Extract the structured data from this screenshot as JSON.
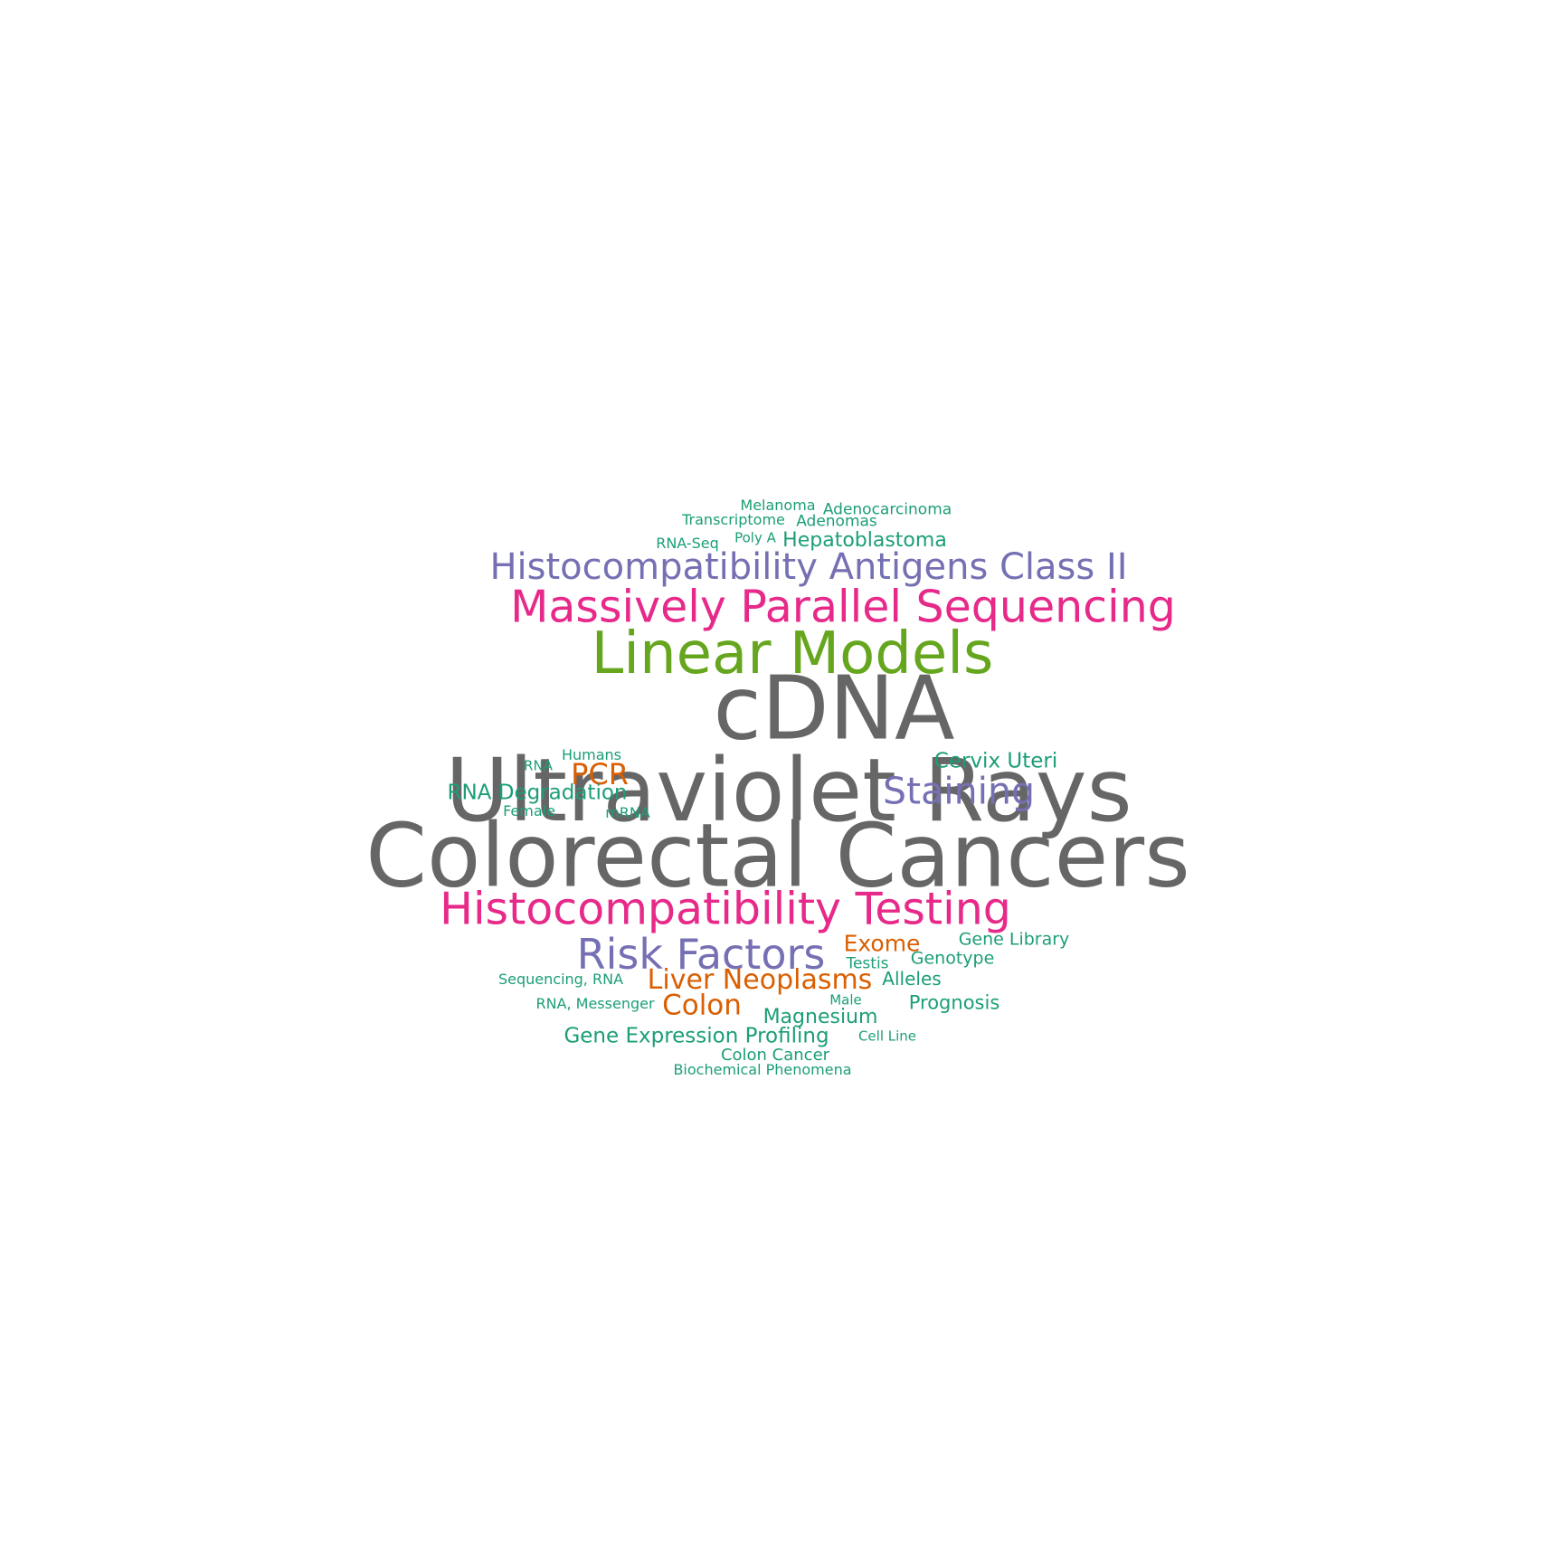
{
  "colors": {
    "gray": "#666666",
    "green": "#1b9e77",
    "lime": "#66a61e",
    "purple": "#7570b3",
    "pink": "#e7298a",
    "orange": "#d95f02"
  },
  "words": [
    {
      "text": "cDNA",
      "color": "gray"
    },
    {
      "text": "Colorectal Cancers",
      "color": "gray"
    },
    {
      "text": "Ultraviolet Rays",
      "color": "gray"
    },
    {
      "text": "Linear Models",
      "color": "lime"
    },
    {
      "text": "Massively Parallel Sequencing",
      "color": "pink"
    },
    {
      "text": "Histocompatibility Testing",
      "color": "pink"
    },
    {
      "text": "Histocompatibility Antigens Class II",
      "color": "purple"
    },
    {
      "text": "Risk Factors",
      "color": "purple"
    },
    {
      "text": "Staining",
      "color": "purple"
    },
    {
      "text": "PCR",
      "color": "orange"
    },
    {
      "text": "Colon",
      "color": "orange"
    },
    {
      "text": "Liver Neoplasms",
      "color": "orange"
    },
    {
      "text": "Exome",
      "color": "orange"
    },
    {
      "text": "RNA Degradation",
      "color": "green"
    },
    {
      "text": "Gene Expression Profiling",
      "color": "green"
    },
    {
      "text": "Cervix Uteri",
      "color": "green"
    },
    {
      "text": "Magnesium",
      "color": "green"
    },
    {
      "text": "Hepatoblastoma",
      "color": "green"
    },
    {
      "text": "Prognosis",
      "color": "green"
    },
    {
      "text": "Alleles",
      "color": "green"
    },
    {
      "text": "Gene Library",
      "color": "green"
    },
    {
      "text": "Genotype",
      "color": "green"
    },
    {
      "text": "Colon Cancer",
      "color": "green"
    },
    {
      "text": "Adenomas",
      "color": "green"
    },
    {
      "text": "Adenocarcinoma",
      "color": "green"
    },
    {
      "text": "Testis",
      "color": "green"
    },
    {
      "text": "Transcriptome",
      "color": "green"
    },
    {
      "text": "RNA-Seq",
      "color": "green"
    },
    {
      "text": "RNA, Messenger",
      "color": "green"
    },
    {
      "text": "Sequencing, RNA",
      "color": "green"
    },
    {
      "text": "Melanoma",
      "color": "green"
    },
    {
      "text": "Female",
      "color": "green"
    },
    {
      "text": "Biochemical Phenomena",
      "color": "green"
    },
    {
      "text": "Humans",
      "color": "green"
    },
    {
      "text": "Cell Line",
      "color": "green"
    },
    {
      "text": "mRNA",
      "color": "green"
    },
    {
      "text": "RNA",
      "color": "green"
    },
    {
      "text": "Poly A",
      "color": "green"
    },
    {
      "text": "Male",
      "color": "green"
    }
  ]
}
